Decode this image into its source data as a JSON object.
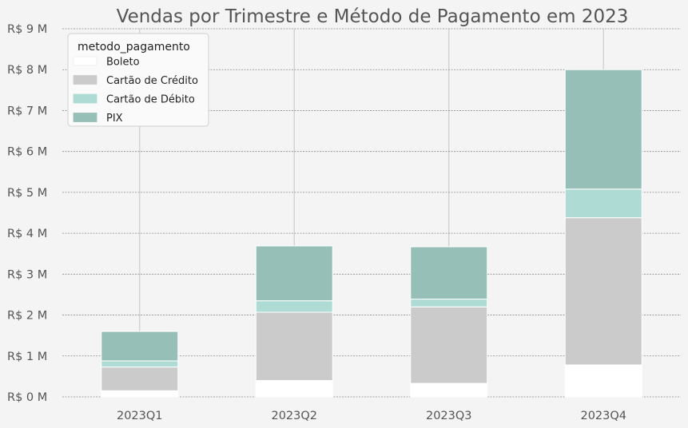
{
  "chart_data": {
    "type": "bar",
    "stacked": true,
    "title": "Vendas por Trimestre e Método de Pagamento em 2023",
    "xlabel": "",
    "ylabel": "",
    "categories": [
      "2023Q1",
      "2023Q2",
      "2023Q3",
      "2023Q4"
    ],
    "series": [
      {
        "name": "Boleto",
        "color": "#ffffff",
        "values": [
          0.15,
          0.4,
          0.33,
          0.78
        ]
      },
      {
        "name": "Cartão de Crédito",
        "color": "#cbcbcb",
        "values": [
          0.58,
          1.67,
          1.87,
          3.6
        ]
      },
      {
        "name": "Cartão de Débito",
        "color": "#aedcd5",
        "values": [
          0.15,
          0.28,
          0.19,
          0.7
        ]
      },
      {
        "name": "PIX",
        "color": "#96bfb8",
        "values": [
          0.72,
          1.34,
          1.28,
          2.92
        ]
      }
    ],
    "ylim": [
      0,
      9
    ],
    "yticks": [
      0,
      1,
      2,
      3,
      4,
      5,
      6,
      7,
      8,
      9
    ],
    "ytick_labels": [
      "R$ 0 M",
      "R$ 1 M",
      "R$ 2 M",
      "R$ 3 M",
      "R$ 4 M",
      "R$ 5 M",
      "R$ 6 M",
      "R$ 7 M",
      "R$ 8 M",
      "R$ 9 M"
    ],
    "grid": {
      "horizontal": true,
      "horizontal_style": "dashed",
      "vertical": true
    },
    "legend": {
      "title": "metodo_pagamento",
      "position": "top-left"
    }
  }
}
